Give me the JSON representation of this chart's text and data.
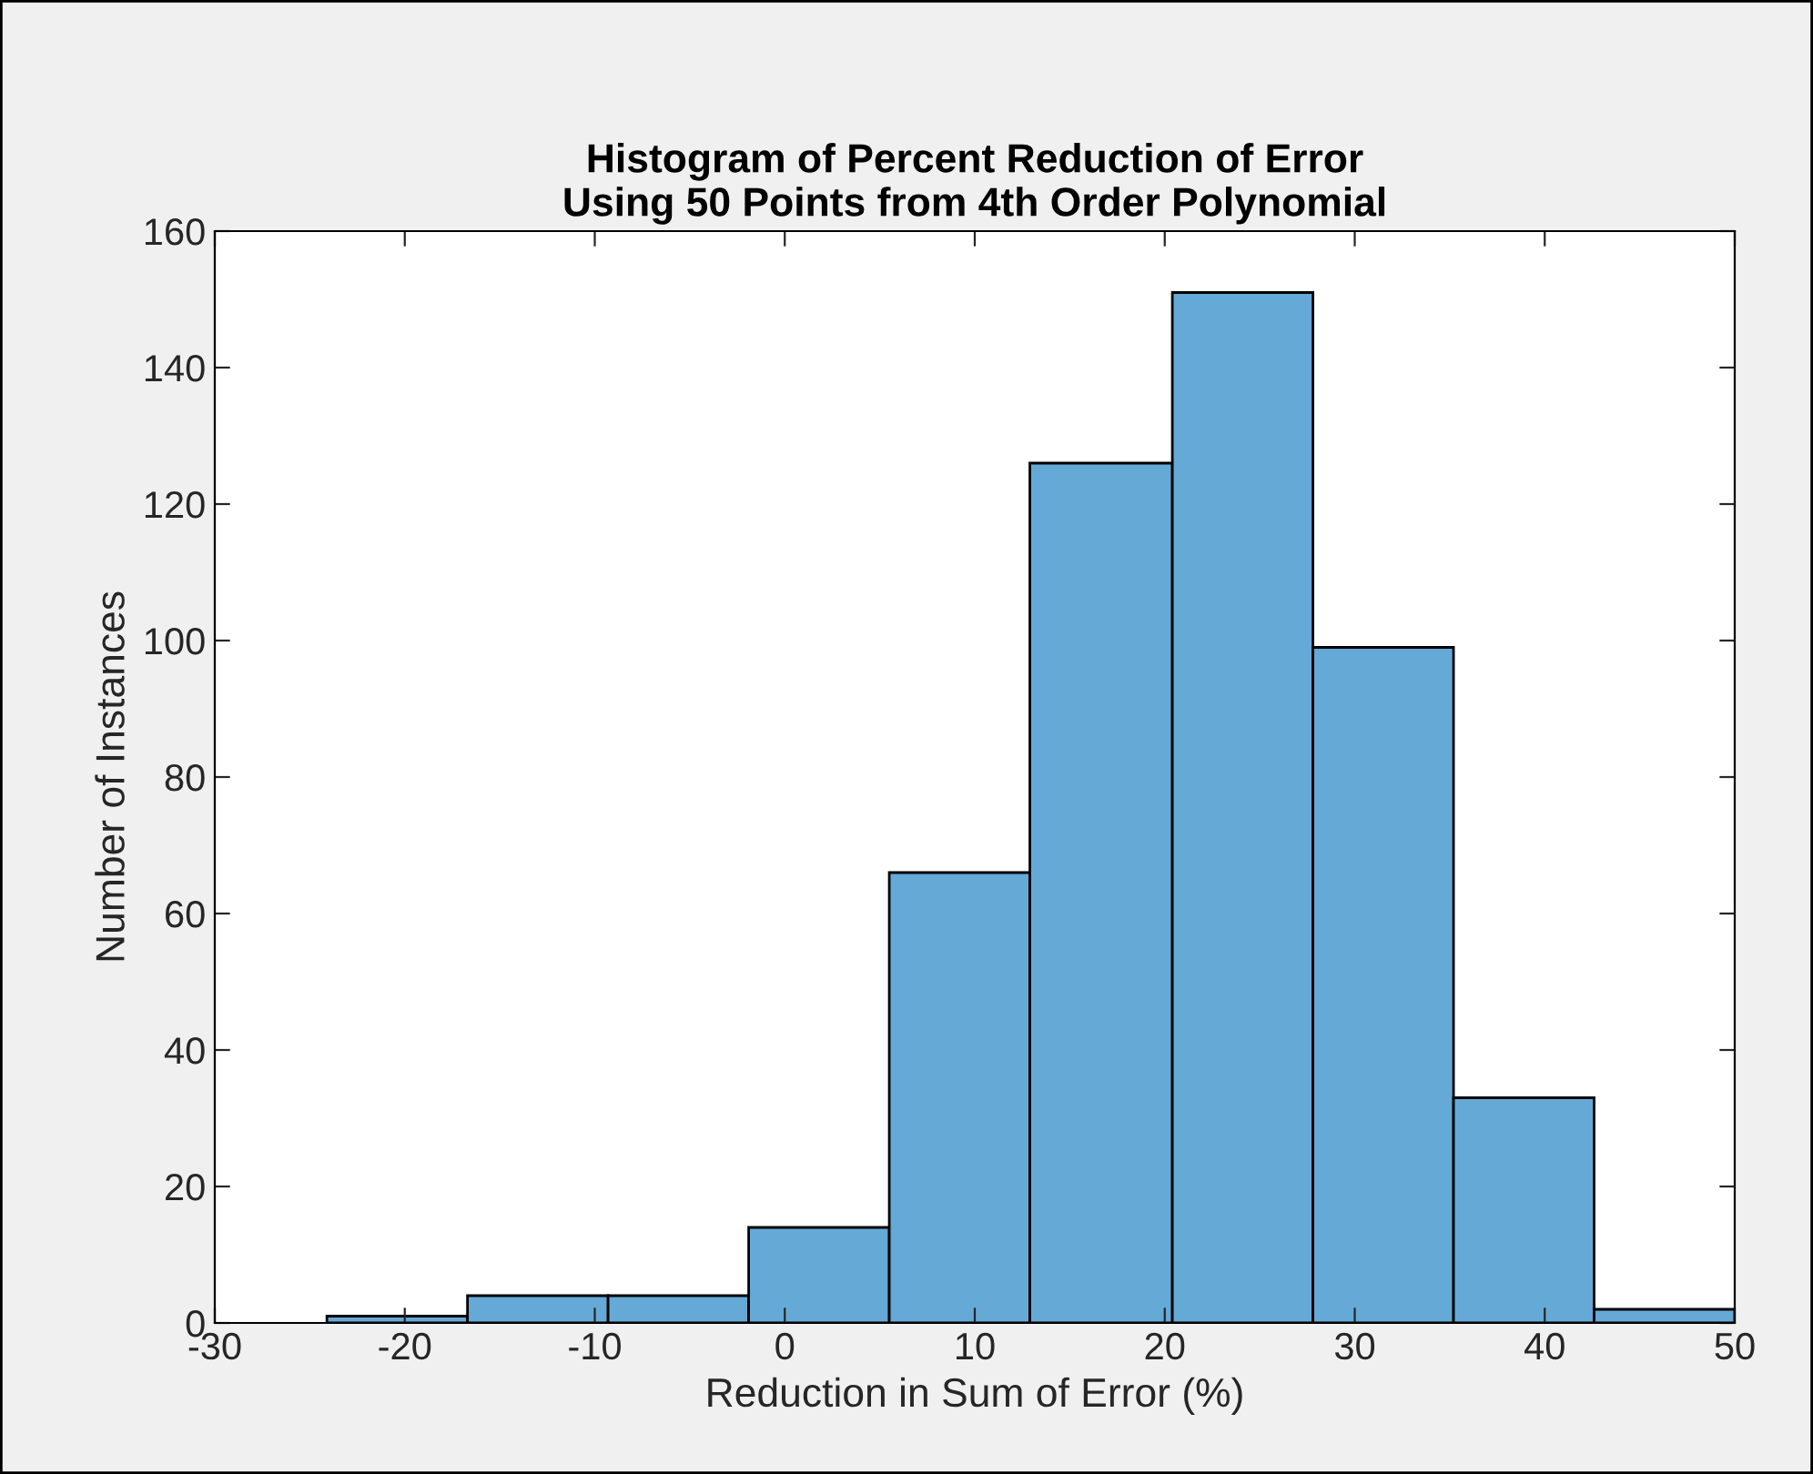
{
  "chart_data": {
    "type": "histogram",
    "title": "Histogram of Percent Reduction of Error\nUsing 50 Points from 4th Order Polynomial",
    "xlabel": "Reduction in Sum of Error (%)",
    "ylabel": "Number of Instances",
    "bins": [
      -24.1,
      -16.7,
      -9.3,
      -1.9,
      5.5,
      12.9,
      20.4,
      27.8,
      35.2,
      42.6,
      50.0
    ],
    "values": [
      1,
      4,
      4,
      14,
      66,
      126,
      151,
      99,
      33,
      2
    ],
    "color": "#65a9d7",
    "xlim": [
      -30,
      50
    ],
    "xticks": [
      -30,
      -20,
      -10,
      0,
      10,
      20,
      30,
      40,
      50
    ],
    "ylim": [
      0,
      160
    ],
    "yticks": [
      0,
      20,
      40,
      60,
      80,
      100,
      120,
      140,
      160
    ],
    "grid": false
  }
}
